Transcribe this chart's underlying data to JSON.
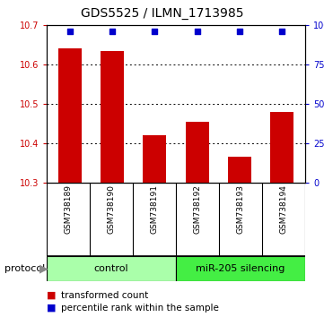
{
  "title": "GDS5525 / ILMN_1713985",
  "samples": [
    "GSM738189",
    "GSM738190",
    "GSM738191",
    "GSM738192",
    "GSM738193",
    "GSM738194"
  ],
  "bar_values": [
    10.64,
    10.635,
    10.42,
    10.455,
    10.365,
    10.48
  ],
  "percentile_values": [
    96,
    96,
    96,
    96,
    96,
    96
  ],
  "ylim_left": [
    10.3,
    10.7
  ],
  "ylim_right": [
    0,
    100
  ],
  "yticks_left": [
    10.3,
    10.4,
    10.5,
    10.6,
    10.7
  ],
  "yticks_right": [
    0,
    25,
    50,
    75,
    100
  ],
  "bar_color": "#cc0000",
  "dot_color": "#0000cc",
  "bar_width": 0.55,
  "bg_color": "#ffffff",
  "plot_bg": "#ffffff",
  "xlabel_bg": "#cccccc",
  "control_color": "#aaffaa",
  "treatment_color": "#44ee44",
  "control_label": "control",
  "treatment_label": "miR-205 silencing",
  "protocol_label": "protocol",
  "legend_bar_label": "transformed count",
  "legend_dot_label": "percentile rank within the sample",
  "title_fontsize": 10,
  "tick_fontsize": 7,
  "sample_fontsize": 6.5,
  "protocol_fontsize": 8,
  "legend_fontsize": 7.5,
  "n_control": 3,
  "n_treatment": 3
}
